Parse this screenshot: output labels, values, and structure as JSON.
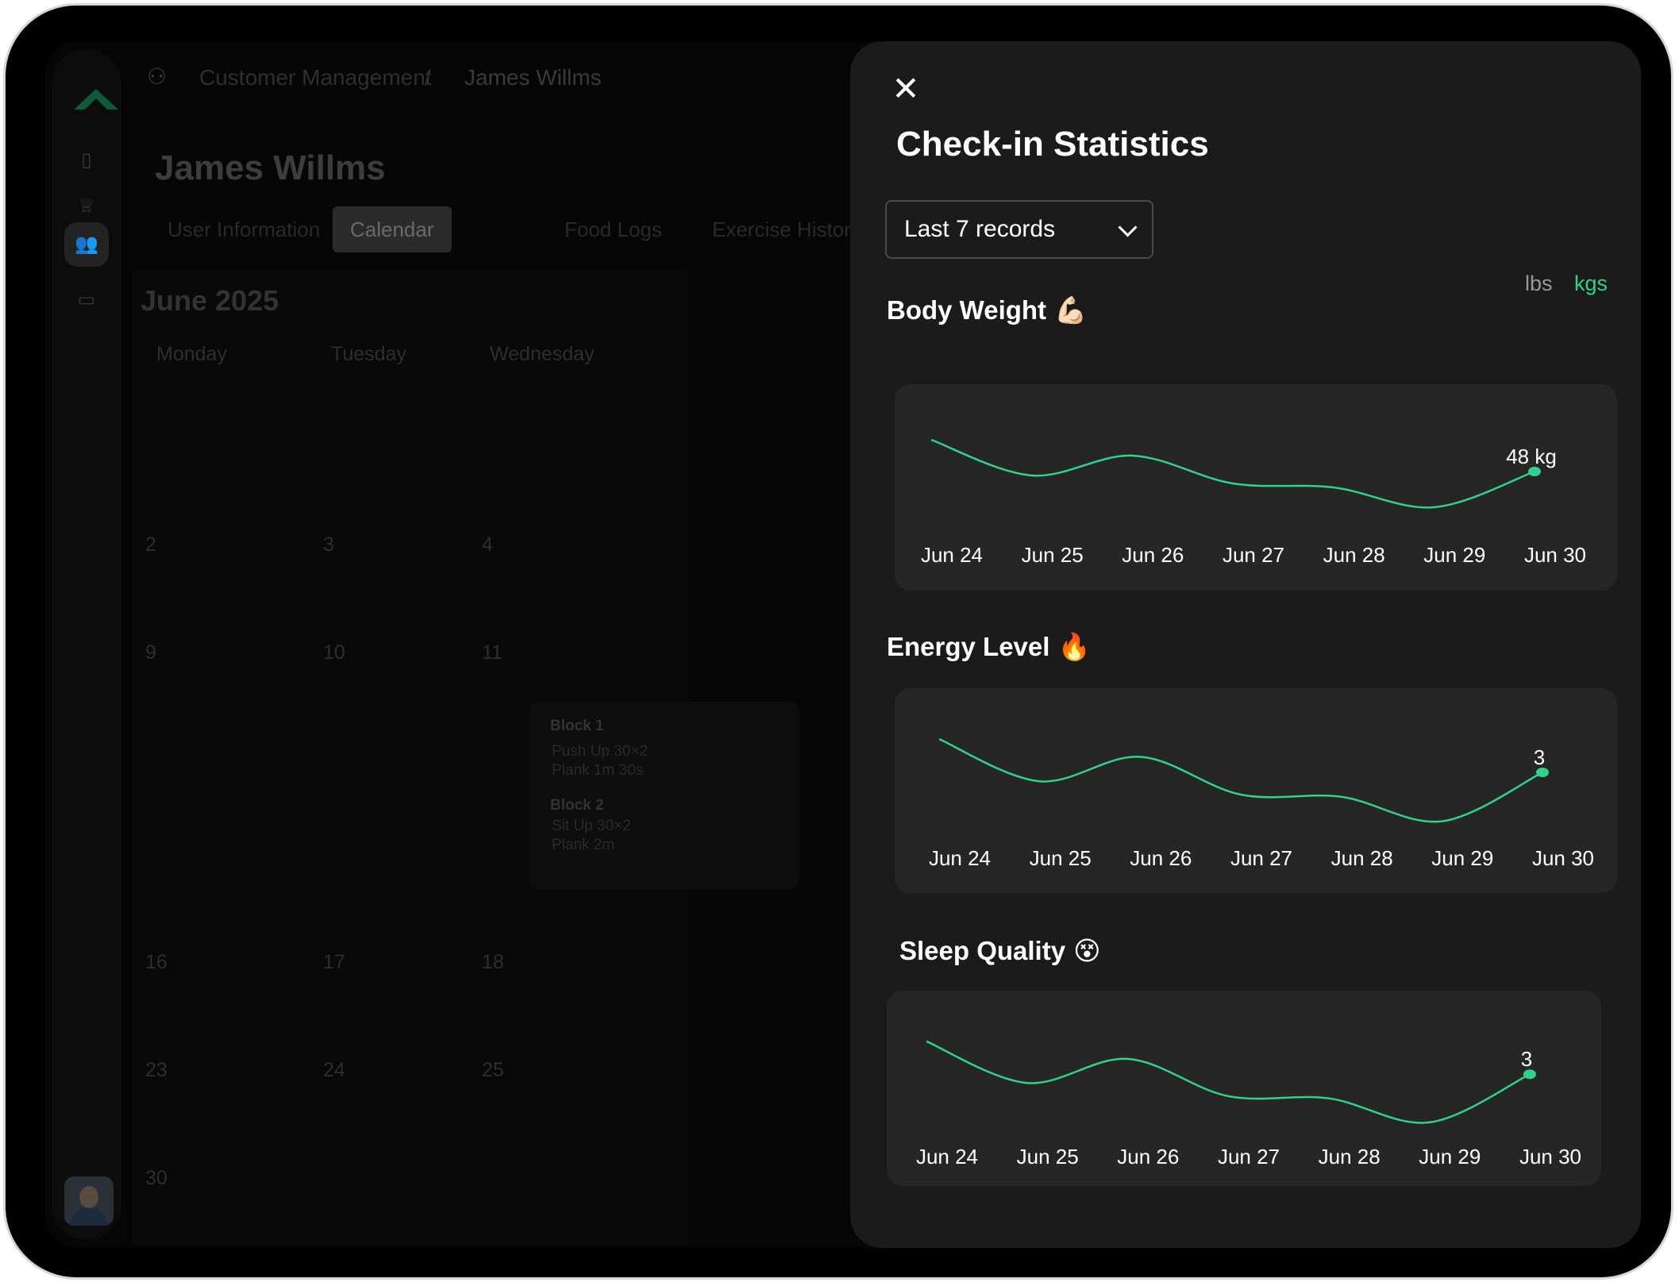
{
  "breadcrumb": {
    "section": "Customer Management",
    "separator": "/",
    "current": "James Willms"
  },
  "customer": {
    "name": "James Willms"
  },
  "tabs": [
    {
      "label": "User Information"
    },
    {
      "label": "Calendar",
      "active": true
    },
    {
      "label": "Food Logs"
    },
    {
      "label": "Exercise History"
    }
  ],
  "calendar": {
    "month": "June 2025",
    "weekdays": [
      "Monday",
      "Tuesday",
      "Wednesday"
    ],
    "days": [
      [
        "2",
        "3",
        "4"
      ],
      [
        "9",
        "10",
        "11"
      ],
      [
        "16",
        "17",
        "18"
      ],
      [
        "23",
        "24",
        "25"
      ],
      [
        "30"
      ]
    ],
    "blocks": [
      {
        "title": "Block 1",
        "items": [
          "Push Up 30×2",
          "Plank 1m 30s"
        ]
      },
      {
        "title": "Block 2",
        "items": [
          "Sit Up 30×2",
          "Plank 2m"
        ]
      }
    ]
  },
  "panel": {
    "title": "Check-in Statistics",
    "range_select": {
      "value": "Last 7 records"
    },
    "units": {
      "lbs": "lbs",
      "kgs": "kgs",
      "selected": "kgs"
    }
  },
  "colors": {
    "accent": "#2fd38a",
    "panel_bg": "#1b1b1b",
    "chart_bg": "#262626"
  },
  "chart_data": [
    {
      "type": "line",
      "title": "Body Weight",
      "emoji": "💪🏻",
      "categories": [
        "Jun 24",
        "Jun 25",
        "Jun 26",
        "Jun 27",
        "Jun 28",
        "Jun 29",
        "Jun 30"
      ],
      "values": [
        52,
        47.5,
        50,
        46.5,
        46,
        43.5,
        48
      ],
      "last_label": "48 kg",
      "ylim": [
        40,
        54
      ]
    },
    {
      "type": "line",
      "title": "Energy Level",
      "emoji": "🔥",
      "categories": [
        "Jun 24",
        "Jun 25",
        "Jun 26",
        "Jun 27",
        "Jun 28",
        "Jun 29",
        "Jun 30"
      ],
      "values": [
        4.5,
        2.6,
        3.7,
        2.0,
        1.9,
        0.8,
        3
      ],
      "last_label": "3",
      "ylim": [
        0,
        5
      ]
    },
    {
      "type": "line",
      "title": "Sleep Quality",
      "emoji": "😵",
      "categories": [
        "Jun 24",
        "Jun 25",
        "Jun 26",
        "Jun 27",
        "Jun 28",
        "Jun 29",
        "Jun 30"
      ],
      "values": [
        4.5,
        2.6,
        3.7,
        2.0,
        1.9,
        0.8,
        3
      ],
      "last_label": "3",
      "ylim": [
        0,
        5
      ]
    }
  ]
}
